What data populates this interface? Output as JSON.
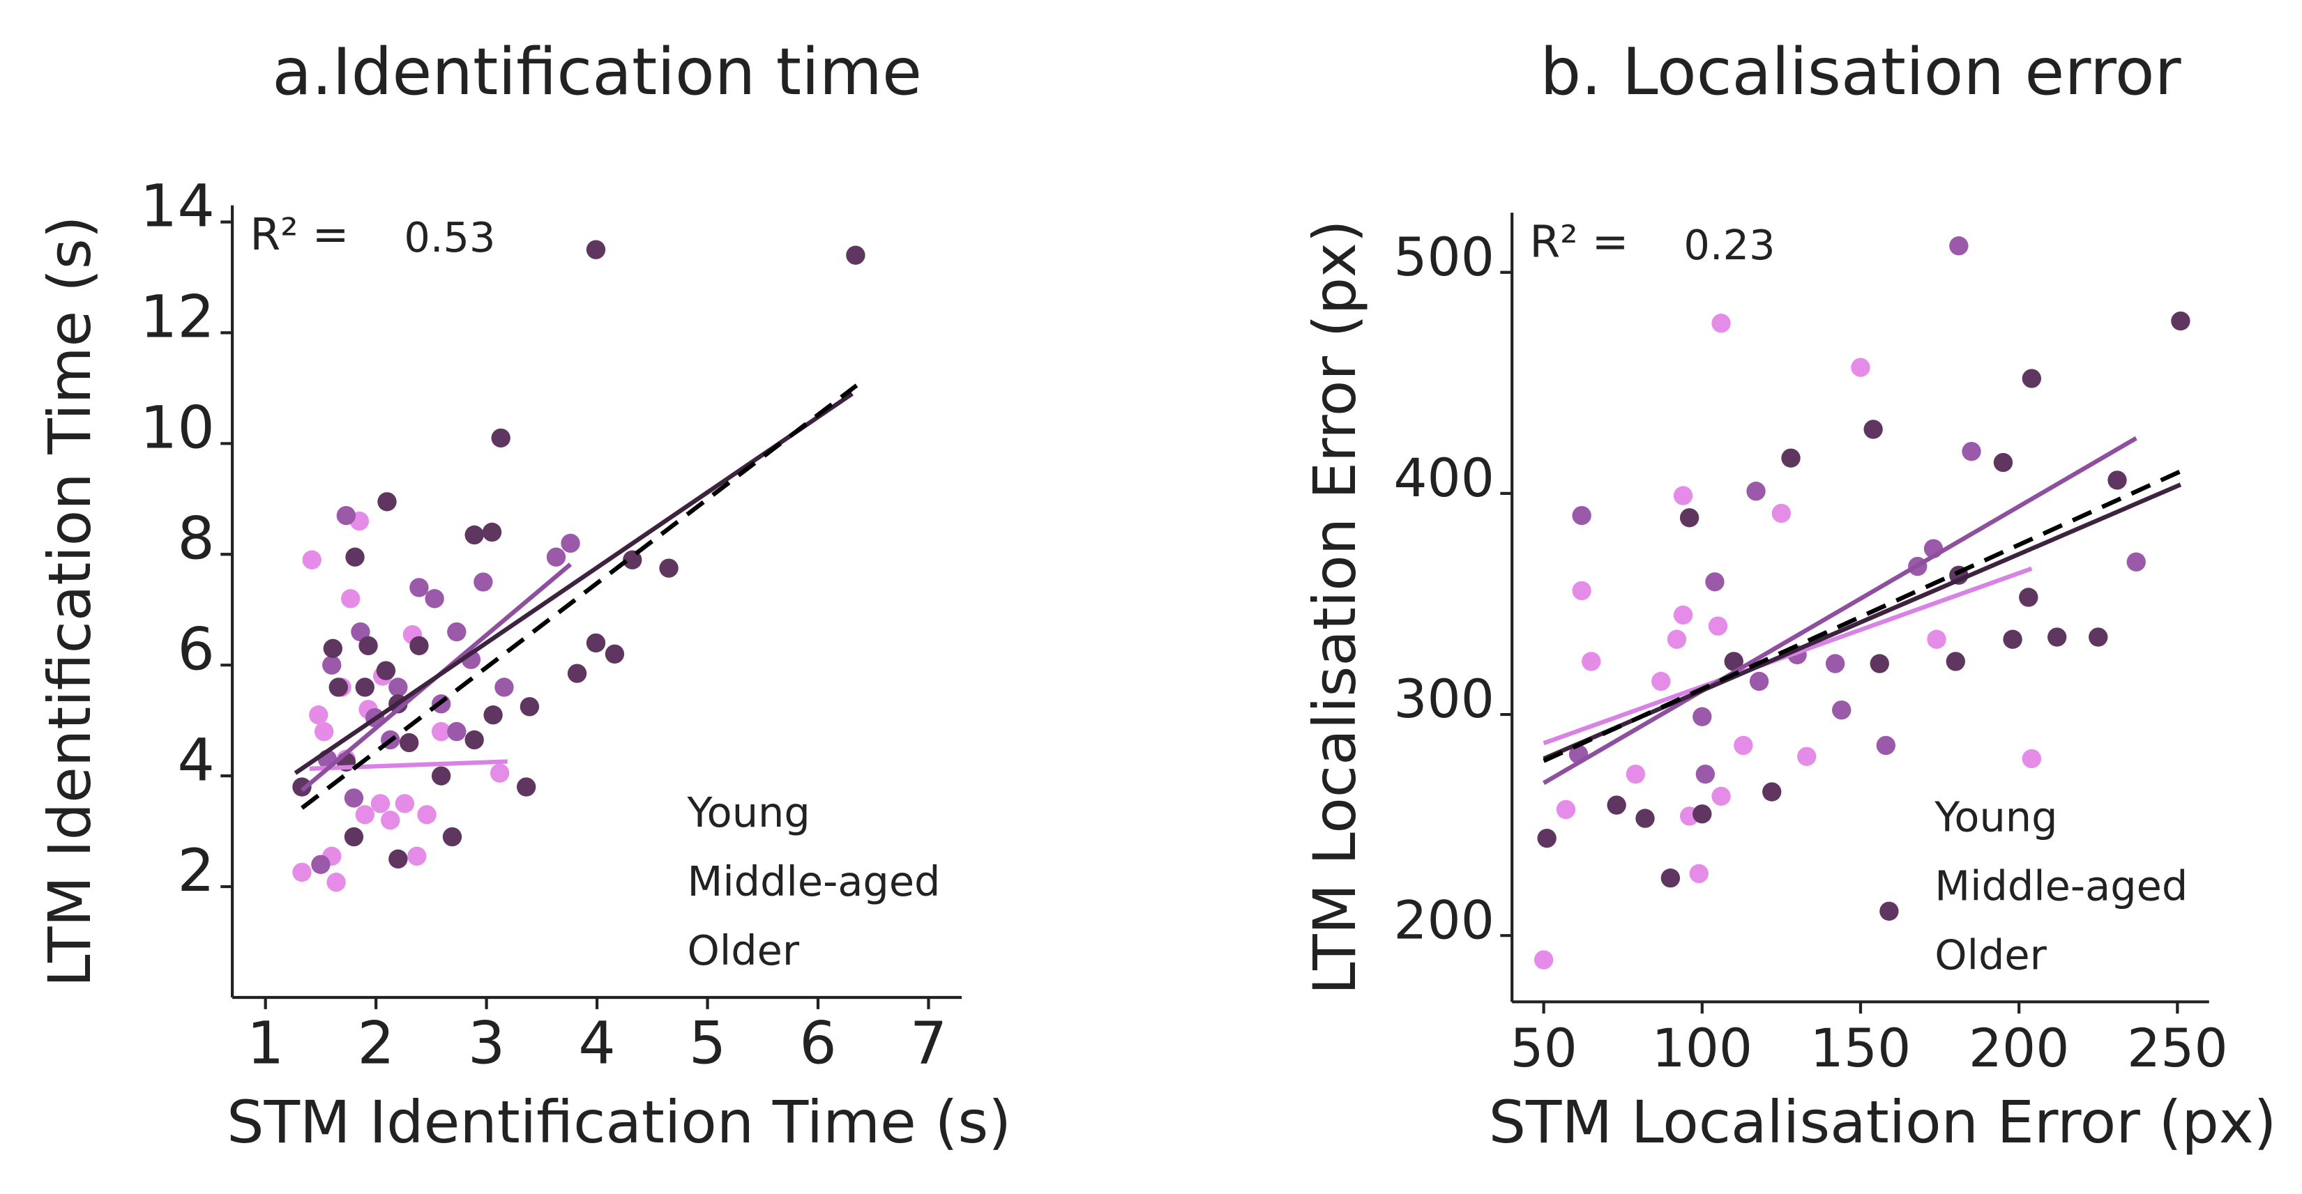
{
  "chart_data": [
    {
      "type": "scatter",
      "title": "a.Identification time",
      "x_label": "STM Identification Time (s)",
      "y_label": "LTM Identification Time (s)",
      "xlim": [
        0.7,
        7.3
      ],
      "ylim": [
        0,
        14.3
      ],
      "xticks": [
        1,
        2,
        3,
        4,
        5,
        6,
        7
      ],
      "yticks": [
        2,
        4,
        6,
        8,
        10,
        12,
        14
      ],
      "annotation": "R² =",
      "r2": 0.53,
      "legend": "lower right",
      "series": [
        {
          "name": "Young",
          "color": "#e58be8",
          "x": [
            1.42,
            1.33,
            1.64,
            1.85,
            1.77,
            1.48,
            1.53,
            1.6,
            1.73,
            1.9,
            2.04,
            2.13,
            2.26,
            2.37,
            2.46,
            2.06,
            2.33,
            2.59,
            3.12,
            1.93,
            1.69
          ],
          "y": [
            7.9,
            2.26,
            2.08,
            8.6,
            7.2,
            5.1,
            4.8,
            2.55,
            4.3,
            3.3,
            3.5,
            3.2,
            3.5,
            2.55,
            3.3,
            5.8,
            6.55,
            4.8,
            4.05,
            5.2,
            5.6
          ],
          "fit": {
            "x": [
              1.4,
              3.19
            ],
            "y": [
              4.13,
              4.26
            ],
            "color": "#d982e6"
          }
        },
        {
          "name": "Middle-aged",
          "color": "#9b5aa9",
          "x": [
            1.6,
            1.73,
            1.86,
            1.99,
            2.2,
            2.39,
            2.53,
            2.73,
            2.86,
            2.97,
            3.16,
            3.63,
            3.76,
            2.59,
            2.13,
            1.8,
            1.56,
            2.73,
            1.5
          ],
          "y": [
            6.0,
            8.7,
            6.6,
            5.05,
            5.6,
            7.4,
            7.2,
            6.6,
            6.1,
            7.5,
            5.6,
            7.95,
            8.2,
            5.3,
            4.65,
            3.6,
            4.3,
            4.8,
            2.4
          ],
          "fit": {
            "x": [
              1.33,
              3.76
            ],
            "y": [
              3.74,
              7.82
            ],
            "color": "#8e4f9e"
          }
        },
        {
          "name": "Older",
          "color": "#5e3660",
          "x": [
            2.1,
            1.81,
            1.61,
            1.66,
            1.9,
            2.09,
            2.2,
            2.39,
            2.89,
            3.05,
            3.13,
            3.36,
            3.99,
            6.34,
            3.99,
            4.16,
            3.82,
            3.39,
            4.32,
            4.65,
            3.06,
            2.89,
            2.59,
            2.3,
            1.8,
            1.73,
            1.33,
            2.2,
            2.69,
            1.93
          ],
          "y": [
            8.95,
            7.95,
            6.3,
            5.6,
            5.6,
            5.9,
            5.3,
            6.35,
            8.35,
            8.4,
            10.1,
            3.8,
            13.5,
            13.4,
            6.4,
            6.2,
            5.85,
            5.25,
            7.9,
            7.75,
            5.1,
            4.65,
            4.0,
            4.6,
            2.9,
            4.25,
            3.8,
            2.5,
            2.9,
            6.35
          ],
          "fit": {
            "x": [
              1.27,
              6.31
            ],
            "y": [
              4.05,
              10.9
            ],
            "color": "#3e2340"
          }
        }
      ],
      "overall_fit": {
        "x": [
          1.33,
          6.35
        ],
        "y": [
          3.42,
          11.05
        ],
        "color": "#000000",
        "dashed": true
      }
    },
    {
      "type": "scatter",
      "title": "b. Localisation error",
      "x_label": "STM Localisation Error (px)",
      "y_label": "LTM Localisation Error (px)",
      "xlim": [
        40,
        260
      ],
      "ylim": [
        170,
        527
      ],
      "xticks": [
        50,
        100,
        150,
        200,
        250
      ],
      "yticks": [
        200,
        300,
        400,
        500
      ],
      "annotation": "R² =",
      "r2": 0.23,
      "legend": "lower right",
      "series": [
        {
          "name": "Young",
          "color": "#e58be8",
          "x": [
            50,
            57,
            65,
            62,
            79,
            92,
            94,
            94,
            106,
            105,
            106,
            96,
            99,
            113,
            125,
            133,
            150,
            174,
            204,
            87
          ],
          "y": [
            189,
            257,
            324,
            356,
            273,
            334,
            399,
            345,
            477,
            340,
            263,
            254,
            228,
            286,
            391,
            281,
            457,
            334,
            280,
            315
          ],
          "fit": {
            "x": [
              50,
              204
            ],
            "y": [
              287,
              366
            ],
            "color": "#d982e6"
          }
        },
        {
          "name": "Middle-aged",
          "color": "#9b5aa9",
          "x": [
            62,
            61,
            104,
            117,
            130,
            144,
            158,
            168,
            173,
            185,
            181,
            118,
            101,
            237,
            142,
            100
          ],
          "y": [
            390,
            282,
            360,
            401,
            327,
            302,
            286,
            367,
            375,
            419,
            512,
            315,
            273,
            369,
            323,
            299
          ],
          "fit": {
            "x": [
              50,
              237
            ],
            "y": [
              269,
              425
            ],
            "color": "#8e4f9e"
          }
        },
        {
          "name": "Older",
          "color": "#5e3660",
          "x": [
            51,
            73,
            82,
            90,
            96,
            100,
            110,
            122,
            128,
            154,
            156,
            159,
            181,
            195,
            198,
            204,
            203,
            212,
            225,
            231,
            251,
            180
          ],
          "y": [
            244,
            259,
            253,
            226,
            389,
            255,
            324,
            265,
            416,
            429,
            323,
            211,
            363,
            414,
            334,
            452,
            353,
            335,
            335,
            406,
            478,
            324
          ],
          "fit": {
            "x": [
              50,
              251
            ],
            "y": [
              280,
              404
            ],
            "color": "#3e2340"
          }
        }
      ],
      "overall_fit": {
        "x": [
          50,
          251
        ],
        "y": [
          279,
          410
        ],
        "color": "#000000",
        "dashed": true
      }
    }
  ]
}
